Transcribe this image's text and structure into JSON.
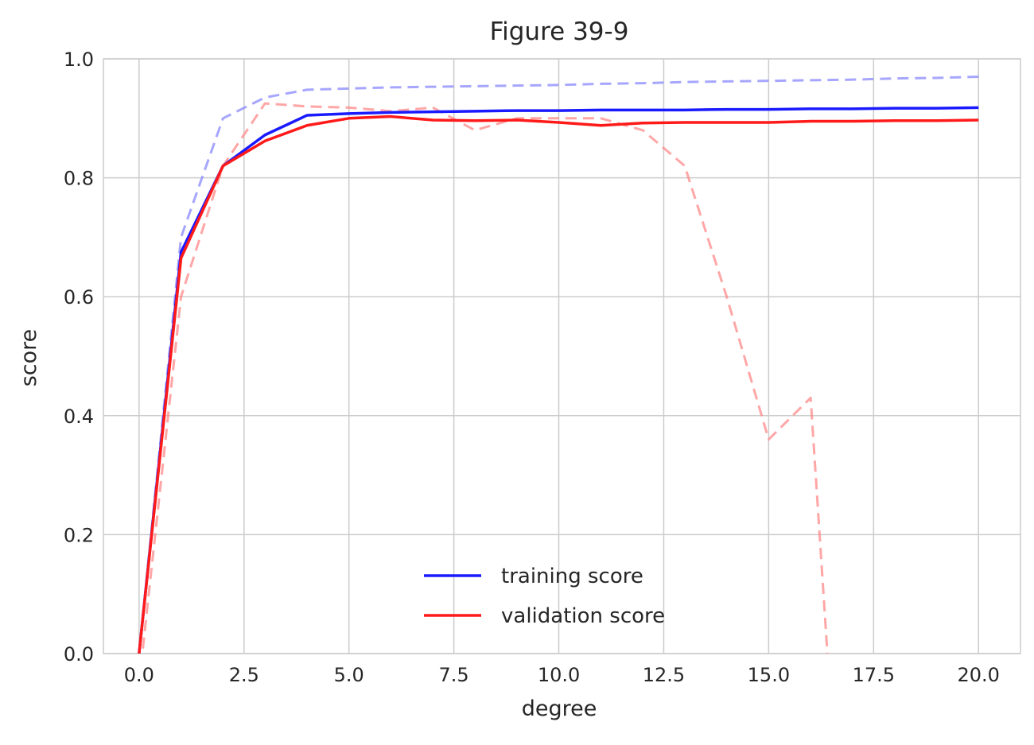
{
  "chart_data": {
    "type": "line",
    "title": "Figure 39-9",
    "xlabel": "degree",
    "ylabel": "score",
    "xlim": [
      -0.85,
      21.0
    ],
    "ylim": [
      0.0,
      1.0
    ],
    "xticks": [
      0.0,
      2.5,
      5.0,
      7.5,
      10.0,
      12.5,
      15.0,
      17.5,
      20.0
    ],
    "xtick_labels": [
      "0.0",
      "2.5",
      "5.0",
      "7.5",
      "10.0",
      "12.5",
      "15.0",
      "17.5",
      "20.0"
    ],
    "yticks": [
      0.0,
      0.2,
      0.4,
      0.6,
      0.8,
      1.0
    ],
    "ytick_labels": [
      "0.0",
      "0.2",
      "0.4",
      "0.6",
      "0.8",
      "1.0"
    ],
    "grid": true,
    "legend_position": "lower-center",
    "series": [
      {
        "name": "training score",
        "color": "#1a1aff",
        "style": "solid",
        "in_legend": true,
        "x": [
          0,
          1,
          2,
          3,
          4,
          5,
          6,
          7,
          8,
          9,
          10,
          11,
          12,
          13,
          14,
          15,
          16,
          17,
          18,
          19,
          20
        ],
        "y": [
          0.0,
          0.675,
          0.82,
          0.872,
          0.905,
          0.908,
          0.91,
          0.911,
          0.912,
          0.913,
          0.913,
          0.914,
          0.914,
          0.914,
          0.915,
          0.915,
          0.916,
          0.916,
          0.917,
          0.917,
          0.918
        ]
      },
      {
        "name": "validation score",
        "color": "#ff1a1a",
        "style": "solid",
        "in_legend": true,
        "x": [
          0,
          1,
          2,
          3,
          4,
          5,
          6,
          7,
          8,
          9,
          10,
          11,
          12,
          13,
          14,
          15,
          16,
          17,
          18,
          19,
          20
        ],
        "y": [
          0.0,
          0.665,
          0.82,
          0.862,
          0.888,
          0.9,
          0.903,
          0.897,
          0.896,
          0.897,
          0.893,
          0.888,
          0.892,
          0.893,
          0.893,
          0.893,
          0.895,
          0.895,
          0.896,
          0.896,
          0.897
        ]
      },
      {
        "name": "",
        "color": "#8888ff",
        "style": "dashed",
        "in_legend": false,
        "x": [
          0,
          1,
          2,
          3,
          4,
          5,
          6,
          7,
          8,
          9,
          10,
          11,
          12,
          13,
          14,
          15,
          16,
          17,
          18,
          19,
          20
        ],
        "y": [
          0.0,
          0.7,
          0.9,
          0.935,
          0.948,
          0.95,
          0.952,
          0.953,
          0.954,
          0.955,
          0.956,
          0.958,
          0.959,
          0.961,
          0.962,
          0.963,
          0.964,
          0.965,
          0.967,
          0.968,
          0.97
        ]
      },
      {
        "name": "",
        "color": "#ff8888",
        "style": "dashed",
        "in_legend": false,
        "x": [
          0,
          1,
          2,
          3,
          4,
          5,
          6,
          7,
          8,
          9,
          10,
          11,
          12,
          13,
          14,
          15,
          16,
          16.4
        ],
        "y": [
          -0.05,
          0.6,
          0.82,
          0.925,
          0.92,
          0.918,
          0.912,
          0.918,
          0.88,
          0.9,
          0.9,
          0.9,
          0.88,
          0.82,
          0.6,
          0.36,
          0.43,
          0.0
        ]
      }
    ]
  }
}
